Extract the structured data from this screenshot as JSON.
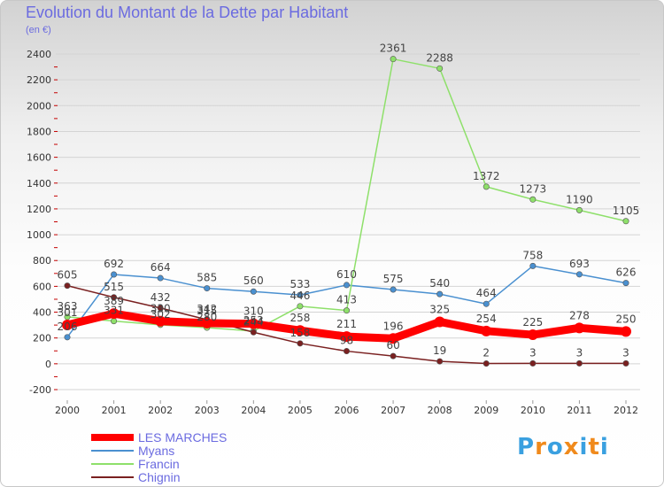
{
  "title": "Evolution du Montant de la Dette par Habitant",
  "subtitle": "(en €)",
  "logo": {
    "letters": [
      "P",
      "r",
      "o",
      "x",
      "i",
      "t",
      "i"
    ],
    "colors": [
      "#3aa0e0",
      "#f08a1c",
      "#3aa0e0",
      "#f08a1c",
      "#3aa0e0",
      "#f08a1c",
      "#3aa0e0"
    ]
  },
  "chart_data": {
    "type": "line",
    "x": [
      "2000",
      "2001",
      "2002",
      "2003",
      "2004",
      "2005",
      "2006",
      "2007",
      "2008",
      "2009",
      "2010",
      "2011",
      "2012"
    ],
    "yticks": [
      "-200",
      "0",
      "200",
      "400",
      "600",
      "800",
      "1000",
      "1200",
      "1400",
      "1600",
      "1800",
      "2000",
      "2200",
      "2400"
    ],
    "ylim": [
      -200,
      2400
    ],
    "grid": true,
    "legend_position": "bottom-left",
    "series": [
      {
        "name": "LES MARCHES",
        "color": "#ff0000",
        "values": [
          301,
          389,
          330,
          315,
          310,
          258,
          211,
          196,
          325,
          254,
          225,
          278,
          250
        ],
        "labels": [
          "301",
          "389",
          "330",
          "315",
          "310",
          "258",
          "211",
          "196",
          "325",
          "254",
          "225",
          "278",
          "250"
        ]
      },
      {
        "name": "Myans",
        "color": "#4a90d0",
        "values": [
          206,
          692,
          664,
          585,
          560,
          533,
          610,
          575,
          540,
          464,
          758,
          693,
          626
        ],
        "labels": [
          "206",
          "692",
          "664",
          "585",
          "560",
          "533",
          "610",
          "575",
          "540",
          "464",
          "758",
          "693",
          "626"
        ]
      },
      {
        "name": "Francin",
        "color": "#8ee06a",
        "values": [
          363,
          331,
          302,
          280,
          253,
          446,
          413,
          2361,
          2288,
          1372,
          1273,
          1190,
          1105
        ],
        "labels": [
          "363",
          "331",
          "302",
          "280",
          "253",
          "446",
          "413",
          "2361",
          "2288",
          "1372",
          "1273",
          "1190",
          "1105"
        ]
      },
      {
        "name": "Chignin",
        "color": "#7a2020",
        "values": [
          605,
          515,
          432,
          342,
          244,
          158,
          98,
          60,
          19,
          2,
          3,
          3,
          3
        ],
        "labels": [
          "605",
          "515",
          "432",
          "342",
          "244",
          "158",
          "98",
          "60",
          "19",
          "2",
          "3",
          "3",
          "3"
        ]
      }
    ]
  }
}
